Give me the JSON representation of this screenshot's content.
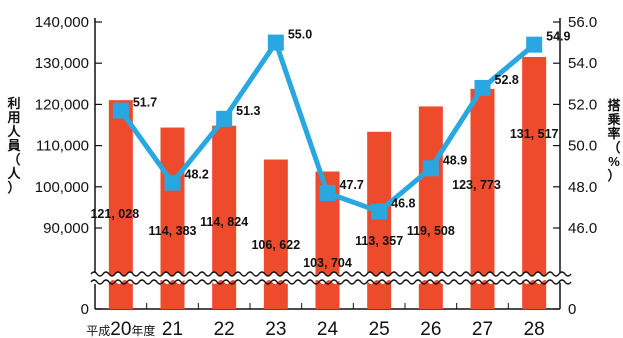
{
  "chart_data": {
    "type": "bar+line",
    "categories": [
      "20",
      "21",
      "22",
      "23",
      "24",
      "25",
      "26",
      "27",
      "28"
    ],
    "category_prefix": "平成",
    "category_suffix": "年度",
    "bar_series": {
      "name": "利用人員（人）",
      "values": [
        121028,
        114383,
        114824,
        106622,
        103704,
        113357,
        119508,
        123773,
        131517
      ],
      "labels": [
        "121, 028",
        "114, 383",
        "114, 824",
        "106, 622",
        "103, 704",
        "113, 357",
        "119, 508",
        "123, 773",
        "131, 517"
      ],
      "color": "#ee4a2c"
    },
    "line_series": {
      "name": "搭乗率（%）",
      "values": [
        51.7,
        48.2,
        51.3,
        55.0,
        47.7,
        46.8,
        48.9,
        52.8,
        54.9
      ],
      "labels": [
        "51.7",
        "48.2",
        "51.3",
        "55.0",
        "47.7",
        "46.8",
        "48.9",
        "52.8",
        "54.9"
      ],
      "color": "#29a7e1"
    },
    "y_left": {
      "label": "利用人員（人）",
      "ticks": [
        "140,000",
        "130,000",
        "120,000",
        "110,000",
        "100,000",
        "90,000",
        "0"
      ],
      "tick_values": [
        140000,
        130000,
        120000,
        110000,
        100000,
        90000,
        0
      ],
      "range_above_break": [
        90000,
        140000
      ],
      "break": true
    },
    "y_right": {
      "label": "搭乗率（%）",
      "ticks": [
        "56.0",
        "54.0",
        "52.0",
        "50.0",
        "48.0",
        "46.0",
        "0"
      ],
      "tick_values": [
        56,
        54,
        52,
        50,
        48,
        46,
        0
      ],
      "range_above_break": [
        46,
        56
      ],
      "break": true
    }
  }
}
